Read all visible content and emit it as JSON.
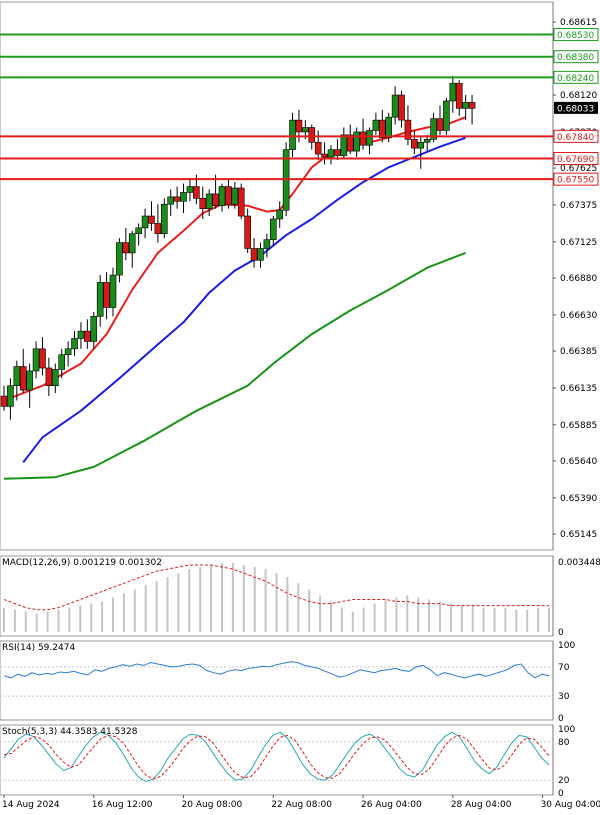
{
  "instrument": {
    "last_price": "0.68033",
    "last_price_value": 0.68033
  },
  "colors": {
    "up_candle": "#1a8c1a",
    "down_candle": "#d71818",
    "resistance": "#1f9a1f",
    "support": "#e01c1c",
    "ma_fast": "#ee1c1c",
    "ma_mid": "#1c1ce6",
    "ma_slow": "#189418",
    "grid": "#c8c8c8",
    "text": "#000000"
  },
  "chart_data": [
    {
      "type": "candlestick",
      "title": "",
      "ylim": [
        0.6505,
        0.6871
      ],
      "y_ticks": [
        "0.68615",
        "0.68120",
        "0.67870",
        "0.67625",
        "0.67375",
        "0.67125",
        "0.66880",
        "0.66630",
        "0.66385",
        "0.66135",
        "0.65885",
        "0.65640",
        "0.65390",
        "0.65145"
      ],
      "x_labels": [
        "14 Aug 2024",
        "16 Aug 12:00",
        "20 Aug 08:00",
        "22 Aug 08:00",
        "26 Aug 04:00",
        "28 Aug 04:00",
        "30 Aug 04:00"
      ],
      "x_label_index": [
        0,
        14,
        28,
        42,
        56,
        70,
        84
      ],
      "x_count": 86,
      "horizontal_levels": [
        {
          "label": "0.68530",
          "value": 0.6853,
          "role": "resistance"
        },
        {
          "label": "0.68380",
          "value": 0.6838,
          "role": "resistance"
        },
        {
          "label": "0.68240",
          "value": 0.6824,
          "role": "resistance"
        },
        {
          "label": "0.67840",
          "value": 0.6784,
          "role": "support"
        },
        {
          "label": "0.67690",
          "value": 0.6769,
          "role": "support"
        },
        {
          "label": "0.67550",
          "value": 0.6755,
          "role": "support"
        }
      ],
      "candles": [
        [
          0.6608,
          0.6615,
          0.6598,
          0.6601
        ],
        [
          0.6601,
          0.662,
          0.6592,
          0.6615
        ],
        [
          0.6615,
          0.6632,
          0.6605,
          0.6628
        ],
        [
          0.6628,
          0.664,
          0.661,
          0.6612
        ],
        [
          0.6612,
          0.663,
          0.66,
          0.6625
        ],
        [
          0.6625,
          0.6645,
          0.662,
          0.664
        ],
        [
          0.664,
          0.6648,
          0.6622,
          0.6627
        ],
        [
          0.6627,
          0.6634,
          0.6608,
          0.6615
        ],
        [
          0.6615,
          0.663,
          0.661,
          0.6626
        ],
        [
          0.6626,
          0.664,
          0.662,
          0.6636
        ],
        [
          0.6636,
          0.6645,
          0.6628,
          0.664
        ],
        [
          0.664,
          0.6652,
          0.6635,
          0.6647
        ],
        [
          0.6647,
          0.6658,
          0.664,
          0.6652
        ],
        [
          0.6652,
          0.666,
          0.664,
          0.6645
        ],
        [
          0.6645,
          0.6665,
          0.664,
          0.6662
        ],
        [
          0.6662,
          0.669,
          0.6655,
          0.6685
        ],
        [
          0.6685,
          0.6692,
          0.666,
          0.6668
        ],
        [
          0.6668,
          0.6695,
          0.6662,
          0.669
        ],
        [
          0.669,
          0.6715,
          0.6685,
          0.6712
        ],
        [
          0.6712,
          0.6722,
          0.67,
          0.6705
        ],
        [
          0.6705,
          0.672,
          0.6695,
          0.6718
        ],
        [
          0.6718,
          0.6725,
          0.671,
          0.6722
        ],
        [
          0.6722,
          0.6735,
          0.6715,
          0.673
        ],
        [
          0.673,
          0.674,
          0.672,
          0.6725
        ],
        [
          0.6725,
          0.6738,
          0.6712,
          0.6718
        ],
        [
          0.6718,
          0.6742,
          0.6715,
          0.6738
        ],
        [
          0.6738,
          0.6748,
          0.673,
          0.6743
        ],
        [
          0.6743,
          0.675,
          0.6735,
          0.674
        ],
        [
          0.674,
          0.6752,
          0.6732,
          0.6746
        ],
        [
          0.6746,
          0.6755,
          0.674,
          0.675
        ],
        [
          0.675,
          0.6758,
          0.6738,
          0.6742
        ],
        [
          0.6742,
          0.675,
          0.6728,
          0.6735
        ],
        [
          0.6735,
          0.6748,
          0.673,
          0.6745
        ],
        [
          0.6745,
          0.6758,
          0.6735,
          0.6737
        ],
        [
          0.6737,
          0.6752,
          0.6733,
          0.675
        ],
        [
          0.675,
          0.6755,
          0.6735,
          0.6738
        ],
        [
          0.6738,
          0.6753,
          0.6735,
          0.6749
        ],
        [
          0.6749,
          0.6752,
          0.6728,
          0.673
        ],
        [
          0.673,
          0.6735,
          0.6705,
          0.6708
        ],
        [
          0.6708,
          0.6715,
          0.6695,
          0.67
        ],
        [
          0.67,
          0.6712,
          0.6695,
          0.6708
        ],
        [
          0.6708,
          0.6718,
          0.6702,
          0.6714
        ],
        [
          0.6714,
          0.673,
          0.671,
          0.6728
        ],
        [
          0.6728,
          0.674,
          0.6722,
          0.6734
        ],
        [
          0.6734,
          0.678,
          0.673,
          0.6775
        ],
        [
          0.6775,
          0.68,
          0.677,
          0.6795
        ],
        [
          0.6795,
          0.6802,
          0.678,
          0.6787
        ],
        [
          0.6787,
          0.6795,
          0.6782,
          0.679
        ],
        [
          0.679,
          0.6792,
          0.6775,
          0.678
        ],
        [
          0.678,
          0.6788,
          0.6768,
          0.6772
        ],
        [
          0.6772,
          0.678,
          0.6765,
          0.677
        ],
        [
          0.677,
          0.6778,
          0.6765,
          0.6775
        ],
        [
          0.6775,
          0.6782,
          0.6768,
          0.6771
        ],
        [
          0.6771,
          0.679,
          0.6769,
          0.6785
        ],
        [
          0.6785,
          0.6792,
          0.6772,
          0.6774
        ],
        [
          0.6774,
          0.679,
          0.677,
          0.6787
        ],
        [
          0.6787,
          0.6796,
          0.6775,
          0.6778
        ],
        [
          0.6778,
          0.679,
          0.6772,
          0.6788
        ],
        [
          0.6788,
          0.68,
          0.6785,
          0.6795
        ],
        [
          0.6795,
          0.6802,
          0.678,
          0.6783
        ],
        [
          0.6783,
          0.68,
          0.678,
          0.6797
        ],
        [
          0.6797,
          0.6818,
          0.6792,
          0.6812
        ],
        [
          0.6812,
          0.6815,
          0.679,
          0.6795
        ],
        [
          0.6795,
          0.6805,
          0.6778,
          0.6782
        ],
        [
          0.6782,
          0.6788,
          0.6772,
          0.6776
        ],
        [
          0.6776,
          0.6784,
          0.6762,
          0.678
        ],
        [
          0.678,
          0.6785,
          0.6774,
          0.6782
        ],
        [
          0.6782,
          0.68,
          0.678,
          0.6796
        ],
        [
          0.6796,
          0.6805,
          0.6785,
          0.6788
        ],
        [
          0.6788,
          0.681,
          0.6785,
          0.6808
        ],
        [
          0.6808,
          0.6825,
          0.68,
          0.682
        ],
        [
          0.682,
          0.6822,
          0.6798,
          0.6803
        ],
        [
          0.6803,
          0.6812,
          0.6795,
          0.6807
        ],
        [
          0.6807,
          0.6812,
          0.6792,
          0.6803
        ]
      ],
      "ma_fast": [
        [
          0,
          0.6605
        ],
        [
          6,
          0.6615
        ],
        [
          12,
          0.663
        ],
        [
          16,
          0.665
        ],
        [
          20,
          0.668
        ],
        [
          24,
          0.6705
        ],
        [
          28,
          0.672
        ],
        [
          31,
          0.6732
        ],
        [
          34,
          0.6738
        ],
        [
          38,
          0.6737
        ],
        [
          41,
          0.6733
        ],
        [
          43,
          0.6734
        ],
        [
          45,
          0.6745
        ],
        [
          48,
          0.6763
        ],
        [
          51,
          0.6773
        ],
        [
          55,
          0.6778
        ],
        [
          59,
          0.6782
        ],
        [
          63,
          0.6787
        ],
        [
          66,
          0.679
        ],
        [
          69,
          0.6792
        ],
        [
          72,
          0.6797
        ]
      ],
      "ma_mid": [
        [
          3,
          0.6563
        ],
        [
          6,
          0.658
        ],
        [
          12,
          0.6598
        ],
        [
          18,
          0.662
        ],
        [
          24,
          0.6643
        ],
        [
          28,
          0.6658
        ],
        [
          32,
          0.6678
        ],
        [
          36,
          0.6693
        ],
        [
          40,
          0.6703
        ],
        [
          44,
          0.6717
        ],
        [
          48,
          0.6728
        ],
        [
          52,
          0.6741
        ],
        [
          56,
          0.6753
        ],
        [
          60,
          0.6763
        ],
        [
          64,
          0.677
        ],
        [
          68,
          0.6777
        ],
        [
          72,
          0.6783
        ]
      ],
      "ma_slow": [
        [
          0,
          0.6552
        ],
        [
          8,
          0.6553
        ],
        [
          14,
          0.656
        ],
        [
          22,
          0.6578
        ],
        [
          30,
          0.6598
        ],
        [
          38,
          0.6615
        ],
        [
          42,
          0.663
        ],
        [
          48,
          0.665
        ],
        [
          54,
          0.6666
        ],
        [
          60,
          0.668
        ],
        [
          66,
          0.6695
        ],
        [
          72,
          0.6705
        ]
      ]
    },
    {
      "type": "bar",
      "title": "MACD(12,26,9) 0.001219 0.001302",
      "ylim": [
        0,
        0.003448
      ],
      "y_ticks": [
        "0.003448",
        "0"
      ],
      "values": [
        0.0012,
        0.0011,
        0.001,
        0.0009,
        0.001,
        0.0011,
        0.0012,
        0.0013,
        0.0014,
        0.0015,
        0.0017,
        0.0019,
        0.0021,
        0.0023,
        0.0025,
        0.0027,
        0.0029,
        0.0031,
        0.0032,
        0.0033,
        0.0034,
        0.0034,
        0.0033,
        0.0032,
        0.0031,
        0.0029,
        0.0027,
        0.0024,
        0.0021,
        0.0018,
        0.0015,
        0.0012,
        0.001,
        0.0012,
        0.0014,
        0.0016,
        0.0017,
        0.0018,
        0.0017,
        0.0016,
        0.0015,
        0.0014,
        0.0013,
        0.0013,
        0.0012,
        0.0012,
        0.0012,
        0.0011,
        0.0011,
        0.0012,
        0.0012
      ],
      "signal": [
        0.0016,
        0.0014,
        0.0012,
        0.0011,
        0.0011,
        0.0012,
        0.0014,
        0.0016,
        0.0018,
        0.002,
        0.0022,
        0.0024,
        0.0026,
        0.0028,
        0.003,
        0.0031,
        0.0032,
        0.0033,
        0.0033,
        0.0033,
        0.0032,
        0.0031,
        0.0029,
        0.0027,
        0.0025,
        0.0022,
        0.0019,
        0.0017,
        0.0015,
        0.0014,
        0.0014,
        0.0015,
        0.0016,
        0.0016,
        0.0016,
        0.0016,
        0.0015,
        0.0015,
        0.0014,
        0.0014,
        0.0014,
        0.0013,
        0.0013,
        0.0013,
        0.0013,
        0.0013,
        0.0013,
        0.0013,
        0.0013,
        0.0013,
        0.0013
      ]
    },
    {
      "type": "line",
      "title": "RSI(14) 59.2474",
      "ylim": [
        0,
        100
      ],
      "y_ticks": [
        "100",
        "70",
        "30",
        "0"
      ],
      "y_tick_values": [
        100,
        70,
        30,
        0
      ],
      "values": [
        58,
        55,
        60,
        57,
        62,
        59,
        61,
        60,
        63,
        62,
        64,
        61,
        59,
        66,
        64,
        68,
        70,
        73,
        71,
        74,
        72,
        76,
        74,
        72,
        70,
        71,
        73,
        74,
        72,
        65,
        62,
        60,
        64,
        66,
        65,
        68,
        69,
        71,
        70,
        73,
        75,
        77,
        76,
        72,
        70,
        68,
        64,
        60,
        56,
        58,
        62,
        66,
        64,
        62,
        65,
        66,
        68,
        65,
        64,
        70,
        72,
        66,
        58,
        62,
        60,
        57,
        55,
        58,
        60,
        57,
        60,
        63,
        66,
        72,
        74,
        62,
        55,
        60,
        58
      ],
      "line_color": "#2d7bd8"
    },
    {
      "type": "line",
      "title": "Stoch(5,3,3) 44.3583 41.5328",
      "ylim": [
        0,
        100
      ],
      "y_ticks": [
        "100",
        "80",
        "20",
        "0"
      ],
      "y_tick_values": [
        100,
        80,
        20,
        0
      ],
      "series": [
        {
          "color": "#2aa8b8",
          "values": [
            55,
            70,
            85,
            92,
            88,
            75,
            60,
            45,
            35,
            40,
            58,
            75,
            88,
            95,
            90,
            78,
            60,
            40,
            25,
            18,
            22,
            35,
            55,
            70,
            85,
            92,
            90,
            80,
            62,
            45,
            30,
            20,
            22,
            35,
            55,
            75,
            90,
            95,
            85,
            65,
            45,
            30,
            22,
            20,
            28,
            45,
            62,
            78,
            88,
            92,
            85,
            70,
            55,
            38,
            28,
            25,
            35,
            55,
            75,
            88,
            95,
            88,
            70,
            50,
            38,
            30,
            40,
            60,
            78,
            90,
            88,
            72,
            55,
            44
          ]
        },
        {
          "color": "#e01c1c",
          "dashed": true,
          "values": [
            60,
            62,
            72,
            82,
            88,
            85,
            75,
            60,
            48,
            40,
            44,
            58,
            72,
            85,
            90,
            88,
            78,
            60,
            42,
            28,
            22,
            26,
            38,
            53,
            70,
            82,
            89,
            88,
            78,
            62,
            45,
            31,
            24,
            25,
            37,
            55,
            73,
            87,
            90,
            82,
            65,
            46,
            32,
            24,
            23,
            31,
            46,
            62,
            76,
            86,
            88,
            83,
            70,
            55,
            40,
            30,
            29,
            38,
            55,
            73,
            86,
            90,
            84,
            69,
            53,
            39,
            36,
            43,
            59,
            76,
            86,
            84,
            72,
            58
          ]
        }
      ]
    }
  ]
}
